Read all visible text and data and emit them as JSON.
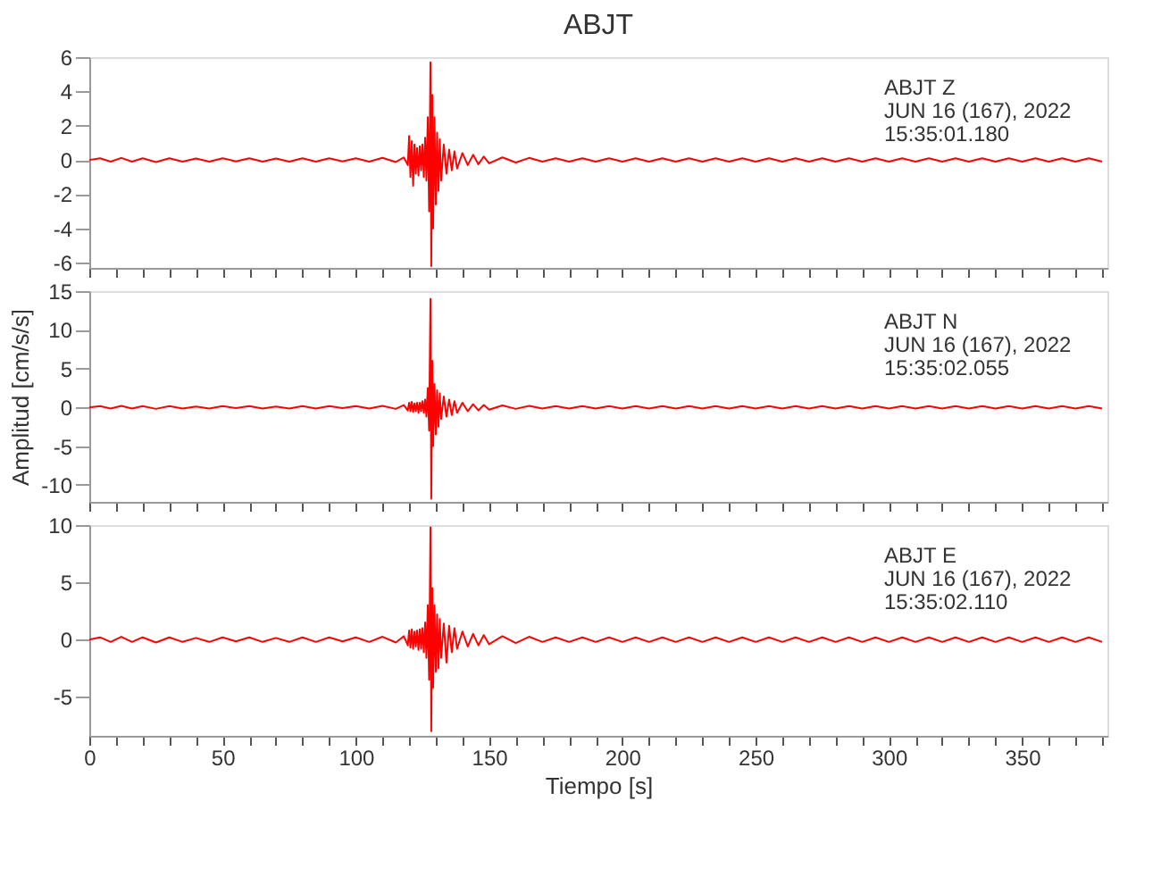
{
  "chart_data": [
    {
      "type": "line",
      "title": "ABJT",
      "annotations": [
        "ABJT   Z",
        "JUN 16 (167), 2022",
        "15:35:01.180"
      ],
      "xlim": [
        0,
        382
      ],
      "ylim": [
        -6.3,
        6
      ],
      "yticks": [
        -6,
        -4,
        -2,
        0,
        2,
        4,
        6
      ],
      "tick_labels": "y",
      "grid": false,
      "line_style": "solid",
      "marker": "none",
      "xticks": [
        0,
        {
          "value": 10,
          "label": null
        },
        {
          "value": 20,
          "label": null
        },
        {
          "value": 30,
          "label": null
        },
        {
          "value": 40,
          "label": null
        },
        50,
        {
          "value": 60,
          "label": null
        },
        {
          "value": 70,
          "label": null
        },
        {
          "value": 80,
          "label": null
        },
        {
          "value": 90,
          "label": null
        },
        100,
        {
          "value": 110,
          "label": null
        },
        {
          "value": 120,
          "label": null
        },
        {
          "value": 130,
          "label": null
        },
        {
          "value": 140,
          "label": null
        },
        150,
        {
          "value": 160,
          "label": null
        },
        {
          "value": 170,
          "label": null
        },
        {
          "value": 180,
          "label": null
        },
        {
          "value": 190,
          "label": null
        },
        200,
        {
          "value": 210,
          "label": null
        },
        {
          "value": 220,
          "label": null
        },
        {
          "value": 230,
          "label": null
        },
        {
          "value": 240,
          "label": null
        },
        250,
        {
          "value": 260,
          "label": null
        },
        {
          "value": 270,
          "label": null
        },
        {
          "value": 280,
          "label": null
        },
        {
          "value": 290,
          "label": null
        },
        300,
        {
          "value": 310,
          "label": null
        },
        {
          "value": 320,
          "label": null
        },
        {
          "value": 330,
          "label": null
        },
        {
          "value": 340,
          "label": null
        },
        350,
        {
          "value": 360,
          "label": null
        },
        {
          "value": 370,
          "label": null
        },
        {
          "value": 380,
          "label": null
        }
      ],
      "x": [
        0,
        4,
        8,
        12,
        16,
        20,
        25,
        30,
        35,
        40,
        45,
        50,
        55,
        60,
        65,
        70,
        75,
        80,
        85,
        90,
        95,
        100,
        105,
        110,
        115,
        118,
        119.5,
        120,
        120.5,
        121,
        121.5,
        122,
        122.5,
        123,
        123.5,
        124,
        124.5,
        125,
        125.5,
        126,
        126.5,
        127,
        127.5,
        128,
        128.3,
        128.7,
        129,
        129.5,
        130,
        130.5,
        131,
        131.5,
        132,
        133,
        134,
        135,
        136,
        137,
        138,
        140,
        142,
        144,
        146,
        148,
        150,
        155,
        160,
        165,
        170,
        175,
        180,
        185,
        190,
        195,
        200,
        205,
        210,
        215,
        220,
        225,
        230,
        235,
        240,
        245,
        250,
        255,
        260,
        265,
        270,
        275,
        280,
        285,
        290,
        295,
        300,
        305,
        310,
        315,
        320,
        325,
        330,
        335,
        340,
        345,
        350,
        355,
        360,
        365,
        370,
        375,
        380
      ],
      "series": [
        {
          "color": "#ff0000",
          "values": [
            0,
            0.1,
            -0.1,
            0.12,
            -0.1,
            0.1,
            -0.12,
            0.1,
            -0.1,
            0.08,
            -0.1,
            0.1,
            -0.08,
            0.1,
            -0.1,
            0.08,
            -0.1,
            0.1,
            -0.1,
            0.1,
            -0.08,
            0.1,
            -0.1,
            0.12,
            -0.12,
            0.15,
            -0.3,
            1.4,
            -1.0,
            1.1,
            -1.5,
            0.9,
            -0.8,
            0.7,
            -0.9,
            0.8,
            -0.6,
            0.9,
            -1.0,
            1.3,
            -1.2,
            2.5,
            -3.0,
            5.7,
            -6.2,
            3.8,
            -4.0,
            2.5,
            -2.6,
            1.6,
            -1.8,
            1.2,
            -1.2,
            0.9,
            -0.8,
            0.6,
            -0.6,
            0.5,
            -0.5,
            0.4,
            -0.3,
            0.3,
            -0.25,
            0.2,
            -0.2,
            0.15,
            -0.15,
            0.12,
            -0.1,
            0.1,
            -0.1,
            0.1,
            -0.1,
            0.1,
            -0.1,
            0.1,
            -0.1,
            0.1,
            -0.1,
            0.1,
            -0.1,
            0.1,
            -0.1,
            0.1,
            -0.1,
            0.1,
            -0.1,
            0.1,
            -0.1,
            0.1,
            -0.1,
            0.1,
            -0.1,
            0.1,
            -0.1,
            0.1,
            -0.1,
            0.1,
            -0.1,
            0.1,
            -0.1,
            0.1,
            -0.1,
            0.1,
            -0.1,
            0.1,
            -0.1,
            0.1,
            -0.1,
            0.1,
            -0.1
          ]
        }
      ]
    },
    {
      "type": "line",
      "ylabel": "Amplitud [cm/s/s]",
      "annotations": [
        "ABJT   N",
        "JUN 16 (167), 2022",
        "15:35:02.055"
      ],
      "xlim": [
        0,
        382
      ],
      "ylim": [
        -12.2,
        15
      ],
      "yticks": [
        -10,
        -5,
        0,
        5,
        10,
        15
      ],
      "tick_labels": "y",
      "grid": false,
      "line_style": "solid",
      "marker": "none",
      "xticks": [
        0,
        {
          "value": 10,
          "label": null
        },
        {
          "value": 20,
          "label": null
        },
        {
          "value": 30,
          "label": null
        },
        {
          "value": 40,
          "label": null
        },
        50,
        {
          "value": 60,
          "label": null
        },
        {
          "value": 70,
          "label": null
        },
        {
          "value": 80,
          "label": null
        },
        {
          "value": 90,
          "label": null
        },
        100,
        {
          "value": 110,
          "label": null
        },
        {
          "value": 120,
          "label": null
        },
        {
          "value": 130,
          "label": null
        },
        {
          "value": 140,
          "label": null
        },
        150,
        {
          "value": 160,
          "label": null
        },
        {
          "value": 170,
          "label": null
        },
        {
          "value": 180,
          "label": null
        },
        {
          "value": 190,
          "label": null
        },
        200,
        {
          "value": 210,
          "label": null
        },
        {
          "value": 220,
          "label": null
        },
        {
          "value": 230,
          "label": null
        },
        {
          "value": 240,
          "label": null
        },
        250,
        {
          "value": 260,
          "label": null
        },
        {
          "value": 270,
          "label": null
        },
        {
          "value": 280,
          "label": null
        },
        {
          "value": 290,
          "label": null
        },
        300,
        {
          "value": 310,
          "label": null
        },
        {
          "value": 320,
          "label": null
        },
        {
          "value": 330,
          "label": null
        },
        {
          "value": 340,
          "label": null
        },
        350,
        {
          "value": 360,
          "label": null
        },
        {
          "value": 370,
          "label": null
        },
        {
          "value": 380,
          "label": null
        }
      ],
      "x": [
        0,
        4,
        8,
        12,
        16,
        20,
        25,
        30,
        35,
        40,
        45,
        50,
        55,
        60,
        65,
        70,
        75,
        80,
        85,
        90,
        95,
        100,
        105,
        110,
        115,
        118,
        119.5,
        120,
        120.5,
        121,
        121.5,
        122,
        122.5,
        123,
        123.5,
        124,
        124.5,
        125,
        125.5,
        126,
        126.5,
        127,
        127.5,
        128,
        128.3,
        128.7,
        129,
        129.5,
        130,
        130.5,
        131,
        131.5,
        132,
        133,
        134,
        135,
        136,
        137,
        138,
        140,
        142,
        144,
        146,
        148,
        150,
        155,
        160,
        165,
        170,
        175,
        180,
        185,
        190,
        195,
        200,
        205,
        210,
        215,
        220,
        225,
        230,
        235,
        240,
        245,
        250,
        255,
        260,
        265,
        270,
        275,
        280,
        285,
        290,
        295,
        300,
        305,
        310,
        315,
        320,
        325,
        330,
        335,
        340,
        345,
        350,
        355,
        360,
        365,
        370,
        375,
        380
      ],
      "series": [
        {
          "color": "#ff0000",
          "values": [
            0,
            0.15,
            -0.15,
            0.2,
            -0.15,
            0.15,
            -0.2,
            0.15,
            -0.15,
            0.1,
            -0.15,
            0.15,
            -0.1,
            0.15,
            -0.15,
            0.1,
            -0.15,
            0.15,
            -0.15,
            0.15,
            -0.1,
            0.15,
            -0.15,
            0.2,
            -0.2,
            0.3,
            -0.4,
            0.6,
            -0.5,
            0.7,
            -0.6,
            0.5,
            -0.5,
            0.6,
            -0.7,
            0.6,
            -0.5,
            0.8,
            -0.7,
            1.0,
            -1.2,
            2.5,
            -3.0,
            14,
            -11.8,
            6.0,
            -5.0,
            3.0,
            -3.5,
            2.2,
            -2.5,
            1.8,
            -1.5,
            1.4,
            -1.2,
            1.0,
            -1.0,
            0.8,
            -0.7,
            0.6,
            -0.5,
            0.4,
            -0.4,
            0.3,
            -0.3,
            0.25,
            -0.2,
            0.2,
            -0.15,
            0.15,
            -0.15,
            0.15,
            -0.15,
            0.15,
            -0.15,
            0.15,
            -0.15,
            0.15,
            -0.15,
            0.15,
            -0.15,
            0.15,
            -0.15,
            0.15,
            -0.15,
            0.15,
            -0.15,
            0.15,
            -0.15,
            0.15,
            -0.15,
            0.15,
            -0.15,
            0.15,
            -0.15,
            0.15,
            -0.15,
            0.15,
            -0.15,
            0.15,
            -0.15,
            0.15,
            -0.15,
            0.15,
            -0.15,
            0.15,
            -0.15,
            0.15,
            -0.15,
            0.15,
            -0.15
          ]
        }
      ]
    },
    {
      "type": "line",
      "xlabel": "Tiempo [s]",
      "annotations": [
        "ABJT   E",
        "JUN 16 (167), 2022",
        "15:35:02.110"
      ],
      "xlim": [
        0,
        382
      ],
      "ylim": [
        -8.4,
        10
      ],
      "yticks": [
        -5,
        0,
        5,
        10
      ],
      "grid": false,
      "line_style": "solid",
      "marker": "none",
      "xticks": [
        0,
        {
          "value": 10,
          "label": null
        },
        {
          "value": 20,
          "label": null
        },
        {
          "value": 30,
          "label": null
        },
        {
          "value": 40,
          "label": null
        },
        50,
        {
          "value": 60,
          "label": null
        },
        {
          "value": 70,
          "label": null
        },
        {
          "value": 80,
          "label": null
        },
        {
          "value": 90,
          "label": null
        },
        100,
        {
          "value": 110,
          "label": null
        },
        {
          "value": 120,
          "label": null
        },
        {
          "value": 130,
          "label": null
        },
        {
          "value": 140,
          "label": null
        },
        150,
        {
          "value": 160,
          "label": null
        },
        {
          "value": 170,
          "label": null
        },
        {
          "value": 180,
          "label": null
        },
        {
          "value": 190,
          "label": null
        },
        200,
        {
          "value": 210,
          "label": null
        },
        {
          "value": 220,
          "label": null
        },
        {
          "value": 230,
          "label": null
        },
        {
          "value": 240,
          "label": null
        },
        250,
        {
          "value": 260,
          "label": null
        },
        {
          "value": 270,
          "label": null
        },
        {
          "value": 280,
          "label": null
        },
        {
          "value": 290,
          "label": null
        },
        300,
        {
          "value": 310,
          "label": null
        },
        {
          "value": 320,
          "label": null
        },
        {
          "value": 330,
          "label": null
        },
        {
          "value": 340,
          "label": null
        },
        350,
        {
          "value": 360,
          "label": null
        },
        {
          "value": 370,
          "label": null
        },
        {
          "value": 380,
          "label": null
        }
      ],
      "x": [
        0,
        4,
        8,
        12,
        16,
        20,
        25,
        30,
        35,
        40,
        45,
        50,
        55,
        60,
        65,
        70,
        75,
        80,
        85,
        90,
        95,
        100,
        105,
        110,
        115,
        118,
        119.5,
        120,
        120.5,
        121,
        121.5,
        122,
        122.5,
        123,
        123.5,
        124,
        124.5,
        125,
        125.5,
        126,
        126.5,
        127,
        127.5,
        128,
        128.3,
        128.7,
        129,
        129.5,
        130,
        130.5,
        131,
        131.5,
        132,
        133,
        134,
        135,
        136,
        137,
        138,
        140,
        142,
        144,
        146,
        148,
        150,
        155,
        160,
        165,
        170,
        175,
        180,
        185,
        190,
        195,
        200,
        205,
        210,
        215,
        220,
        225,
        230,
        235,
        240,
        245,
        250,
        255,
        260,
        265,
        270,
        275,
        280,
        285,
        290,
        295,
        300,
        305,
        310,
        315,
        320,
        325,
        330,
        335,
        340,
        345,
        350,
        355,
        360,
        365,
        370,
        375,
        380
      ],
      "series": [
        {
          "color": "#ff0000",
          "values": [
            0,
            0.2,
            -0.2,
            0.25,
            -0.2,
            0.2,
            -0.25,
            0.2,
            -0.2,
            0.15,
            -0.2,
            0.2,
            -0.15,
            0.2,
            -0.2,
            0.15,
            -0.2,
            0.2,
            -0.2,
            0.2,
            -0.15,
            0.2,
            -0.2,
            0.25,
            -0.25,
            0.3,
            -0.5,
            0.8,
            -0.7,
            0.9,
            -0.8,
            0.7,
            -0.6,
            0.8,
            -0.9,
            0.9,
            -0.8,
            1.0,
            -1.1,
            1.5,
            -1.6,
            3.0,
            -3.5,
            9.8,
            -8.0,
            4.5,
            -4.2,
            3.0,
            -2.8,
            2.2,
            -2.5,
            1.8,
            -1.6,
            1.4,
            -2.0,
            1.2,
            -1.1,
            1.0,
            -0.8,
            0.7,
            -0.6,
            0.5,
            -0.5,
            0.4,
            -0.4,
            0.3,
            -0.3,
            0.25,
            -0.2,
            0.2,
            -0.2,
            0.2,
            -0.2,
            0.2,
            -0.2,
            0.2,
            -0.2,
            0.2,
            -0.2,
            0.2,
            -0.2,
            0.2,
            -0.2,
            0.2,
            -0.2,
            0.2,
            -0.2,
            0.2,
            -0.2,
            0.2,
            -0.2,
            0.2,
            -0.2,
            0.2,
            -0.2,
            0.2,
            -0.2,
            0.2,
            -0.2,
            0.2,
            -0.2,
            0.2,
            -0.2,
            0.2,
            -0.2,
            0.2,
            -0.2,
            0.2,
            -0.2,
            0.2,
            -0.2
          ]
        }
      ]
    }
  ]
}
